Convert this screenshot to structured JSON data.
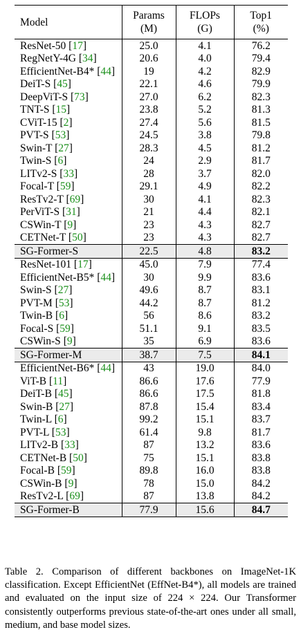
{
  "headers": {
    "model": "Model",
    "params": [
      "Params",
      "(M)"
    ],
    "flops": [
      "FLOPs",
      "(G)"
    ],
    "top1": [
      "Top1",
      "(%)"
    ]
  },
  "sections": [
    {
      "rows": [
        {
          "model": "ResNet-50",
          "cite": "17",
          "params": "25.0",
          "flops": "4.1",
          "top1": "76.2"
        },
        {
          "model": "RegNetY-4G",
          "cite": "34",
          "params": "20.6",
          "flops": "4.0",
          "top1": "79.4"
        },
        {
          "model": "EfficientNet-B4*",
          "cite": "44",
          "params": "19",
          "flops": "4.2",
          "top1": "82.9"
        },
        {
          "model": "DeiT-S",
          "cite": "45",
          "params": "22.1",
          "flops": "4.6",
          "top1": "79.9"
        },
        {
          "model": "DeepViT-S",
          "cite": "73",
          "params": "27.0",
          "flops": "6.2",
          "top1": "82.3"
        },
        {
          "model": "TNT-S",
          "cite": "15",
          "params": "23.8",
          "flops": "5.2",
          "top1": "81.3"
        },
        {
          "model": "CViT-15",
          "cite": "2",
          "params": "27.4",
          "flops": "5.6",
          "top1": "81.5"
        },
        {
          "model": "PVT-S",
          "cite": "53",
          "params": "24.5",
          "flops": "3.8",
          "top1": "79.8"
        },
        {
          "model": "Swin-T",
          "cite": "27",
          "params": "28.3",
          "flops": "4.5",
          "top1": "81.2"
        },
        {
          "model": "Twin-S",
          "cite": "6",
          "params": "24",
          "flops": "2.9",
          "top1": "81.7"
        },
        {
          "model": "LITv2-S",
          "cite": "33",
          "params": "28",
          "flops": "3.7",
          "top1": "82.0"
        },
        {
          "model": "Focal-T",
          "cite": "59",
          "params": "29.1",
          "flops": "4.9",
          "top1": "82.2"
        },
        {
          "model": "ResTv2-T",
          "cite": "69",
          "params": "30",
          "flops": "4.1",
          "top1": "82.3"
        },
        {
          "model": "PerViT-S",
          "cite": "31",
          "params": "21",
          "flops": "4.4",
          "top1": "82.1"
        },
        {
          "model": "CSWin-T",
          "cite": "9",
          "params": "23",
          "flops": "4.3",
          "top1": "82.7"
        },
        {
          "model": "CETNet-T",
          "cite": "50",
          "params": "23",
          "flops": "4.3",
          "top1": "82.7"
        }
      ],
      "ours": {
        "model": "SG-Former-S",
        "params": "22.5",
        "flops": "4.8",
        "top1": "83.2"
      }
    },
    {
      "rows": [
        {
          "model": "ResNet-101",
          "cite": "17",
          "params": "45.0",
          "flops": "7.9",
          "top1": "77.4"
        },
        {
          "model": "EfficientNet-B5*",
          "cite": "44",
          "params": "30",
          "flops": "9.9",
          "top1": "83.6"
        },
        {
          "model": "Swin-S",
          "cite": "27",
          "params": "49.6",
          "flops": "8.7",
          "top1": "83.1"
        },
        {
          "model": "PVT-M",
          "cite": "53",
          "params": "44.2",
          "flops": "8.7",
          "top1": "81.2"
        },
        {
          "model": "Twin-B",
          "cite": "6",
          "params": "56",
          "flops": "8.6",
          "top1": "83.2"
        },
        {
          "model": "Focal-S",
          "cite": "59",
          "params": "51.1",
          "flops": "9.1",
          "top1": "83.5"
        },
        {
          "model": "CSWin-S",
          "cite": "9",
          "params": "35",
          "flops": "6.9",
          "top1": "83.6"
        }
      ],
      "ours": {
        "model": "SG-Former-M",
        "params": "38.7",
        "flops": "7.5",
        "top1": "84.1"
      }
    },
    {
      "rows": [
        {
          "model": "EfficientNet-B6*",
          "cite": "44",
          "params": "43",
          "flops": "19.0",
          "top1": "84.0"
        },
        {
          "model": "ViT-B",
          "cite": "11",
          "params": "86.6",
          "flops": "17.6",
          "top1": "77.9"
        },
        {
          "model": "DeiT-B",
          "cite": "45",
          "params": "86.6",
          "flops": "17.5",
          "top1": "81.8"
        },
        {
          "model": "Swin-B",
          "cite": "27",
          "params": "87.8",
          "flops": "15.4",
          "top1": "83.4"
        },
        {
          "model": "Twin-L",
          "cite": "6",
          "params": "99.2",
          "flops": "15.1",
          "top1": "83.7"
        },
        {
          "model": "PVT-L",
          "cite": "53",
          "params": "61.4",
          "flops": "9.8",
          "top1": "81.7"
        },
        {
          "model": "LITv2-B",
          "cite": "33",
          "params": "87",
          "flops": "13.2",
          "top1": "83.6"
        },
        {
          "model": "CETNet-B",
          "cite": "50",
          "params": "75",
          "flops": "15.1",
          "top1": "83.8"
        },
        {
          "model": "Focal-B",
          "cite": "59",
          "params": "89.8",
          "flops": "16.0",
          "top1": "83.8"
        },
        {
          "model": "CSWin-B",
          "cite": "9",
          "params": "78",
          "flops": "15.0",
          "top1": "84.2"
        },
        {
          "model": "ResTv2-L",
          "cite": "69",
          "params": "87",
          "flops": "13.8",
          "top1": "84.2"
        }
      ],
      "ours": {
        "model": "SG-Former-B",
        "params": "77.9",
        "flops": "15.6",
        "top1": "84.7"
      }
    }
  ],
  "caption": "Table 2. Comparison of different backbones on ImageNet-1K classification. Except EfficientNet (EffNet-B4*), all models are trained and evaluated on the input size of 224 × 224. Our Transformer consistently outperforms previous state-of-the-art ones under all small, medium, and base model sizes."
}
